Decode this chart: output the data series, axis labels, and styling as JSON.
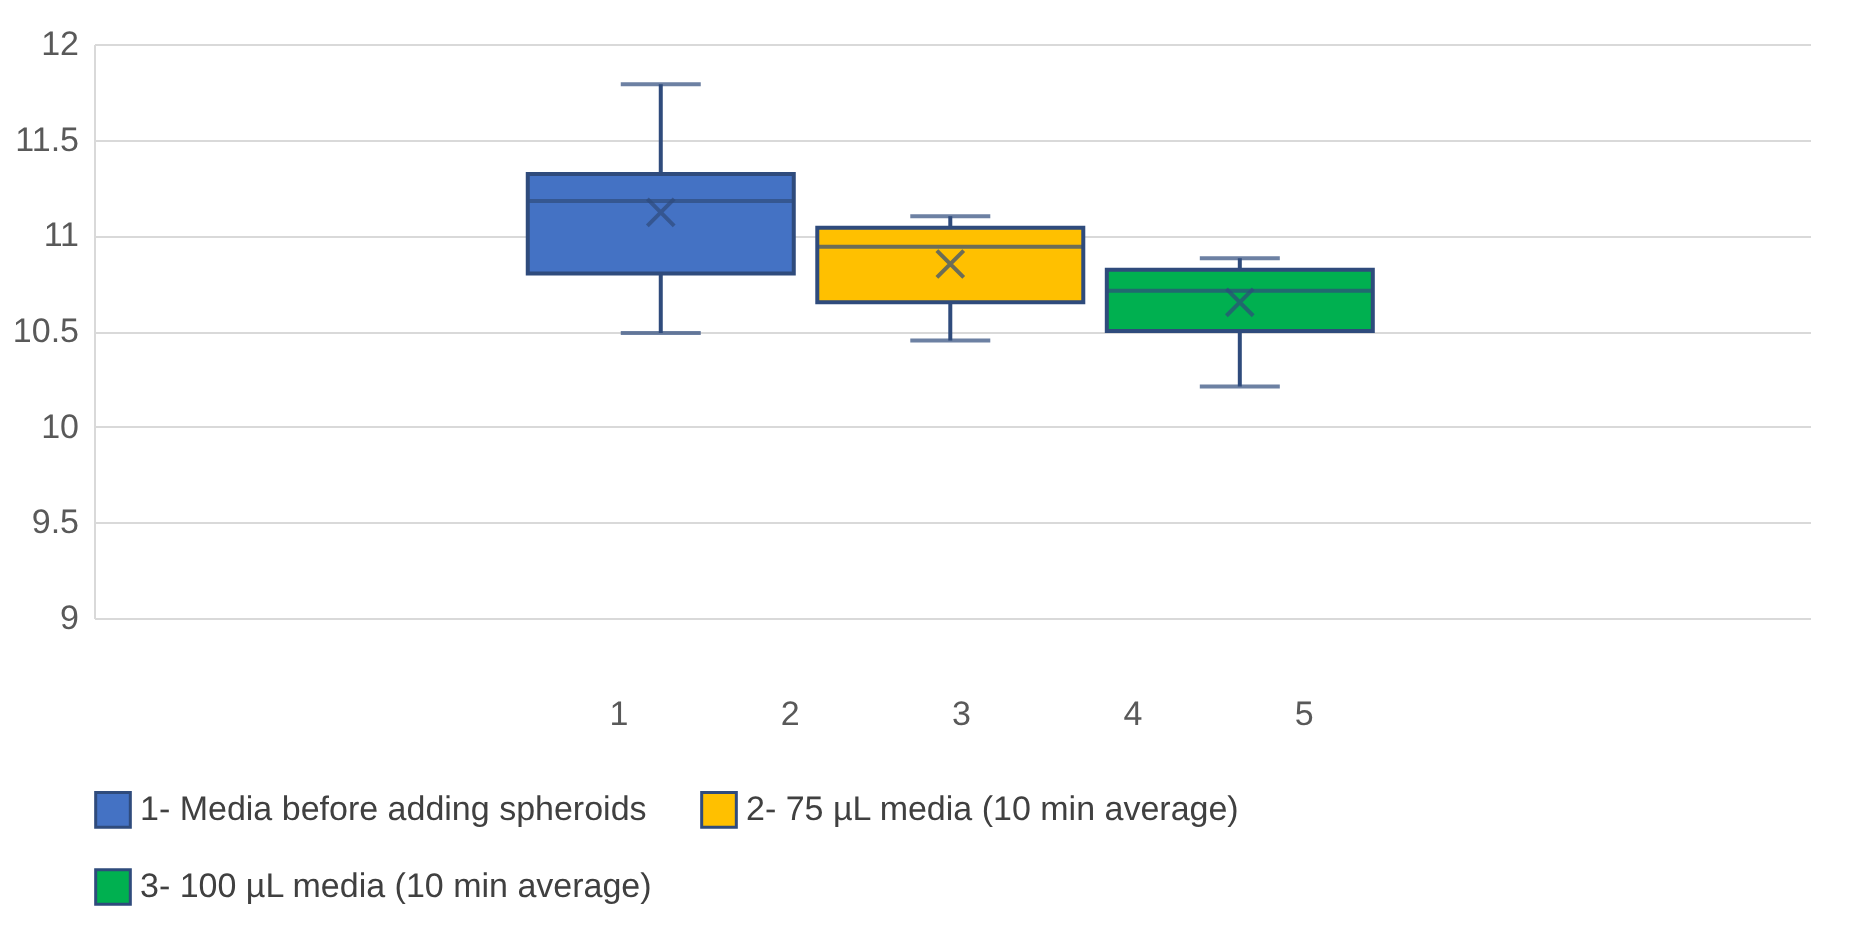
{
  "chart_data": {
    "type": "box",
    "xlim": [
      -2.0,
      7.9
    ],
    "xticks": [
      1,
      2,
      3,
      4,
      5
    ],
    "ylim": [
      9,
      12
    ],
    "yticks": [
      9,
      9.5,
      10,
      10.5,
      11,
      11.5,
      12
    ],
    "grid": "y",
    "legend": "bottom",
    "series": [
      {
        "name": "1- Media before adding spheroids",
        "color": "#4472c4",
        "x": [
          1.25
        ],
        "boxes": [
          {
            "low": 10.49,
            "q1": 10.8,
            "median": 11.18,
            "q3": 11.32,
            "high": 11.79,
            "mean": 11.12
          }
        ]
      },
      {
        "name": "2- 75 µL media (10 min average)",
        "color": "#ffc000",
        "x": [
          2.94
        ],
        "boxes": [
          {
            "low": 10.45,
            "q1": 10.65,
            "median": 10.94,
            "q3": 11.04,
            "high": 11.1,
            "mean": 10.85
          }
        ]
      },
      {
        "name": "3- 100 µL media (10 min average)",
        "color": "#00b050",
        "x": [
          4.63
        ],
        "boxes": [
          {
            "low": 10.21,
            "q1": 10.5,
            "median": 10.71,
            "q3": 10.82,
            "high": 10.88,
            "mean": 10.65
          }
        ]
      }
    ]
  }
}
